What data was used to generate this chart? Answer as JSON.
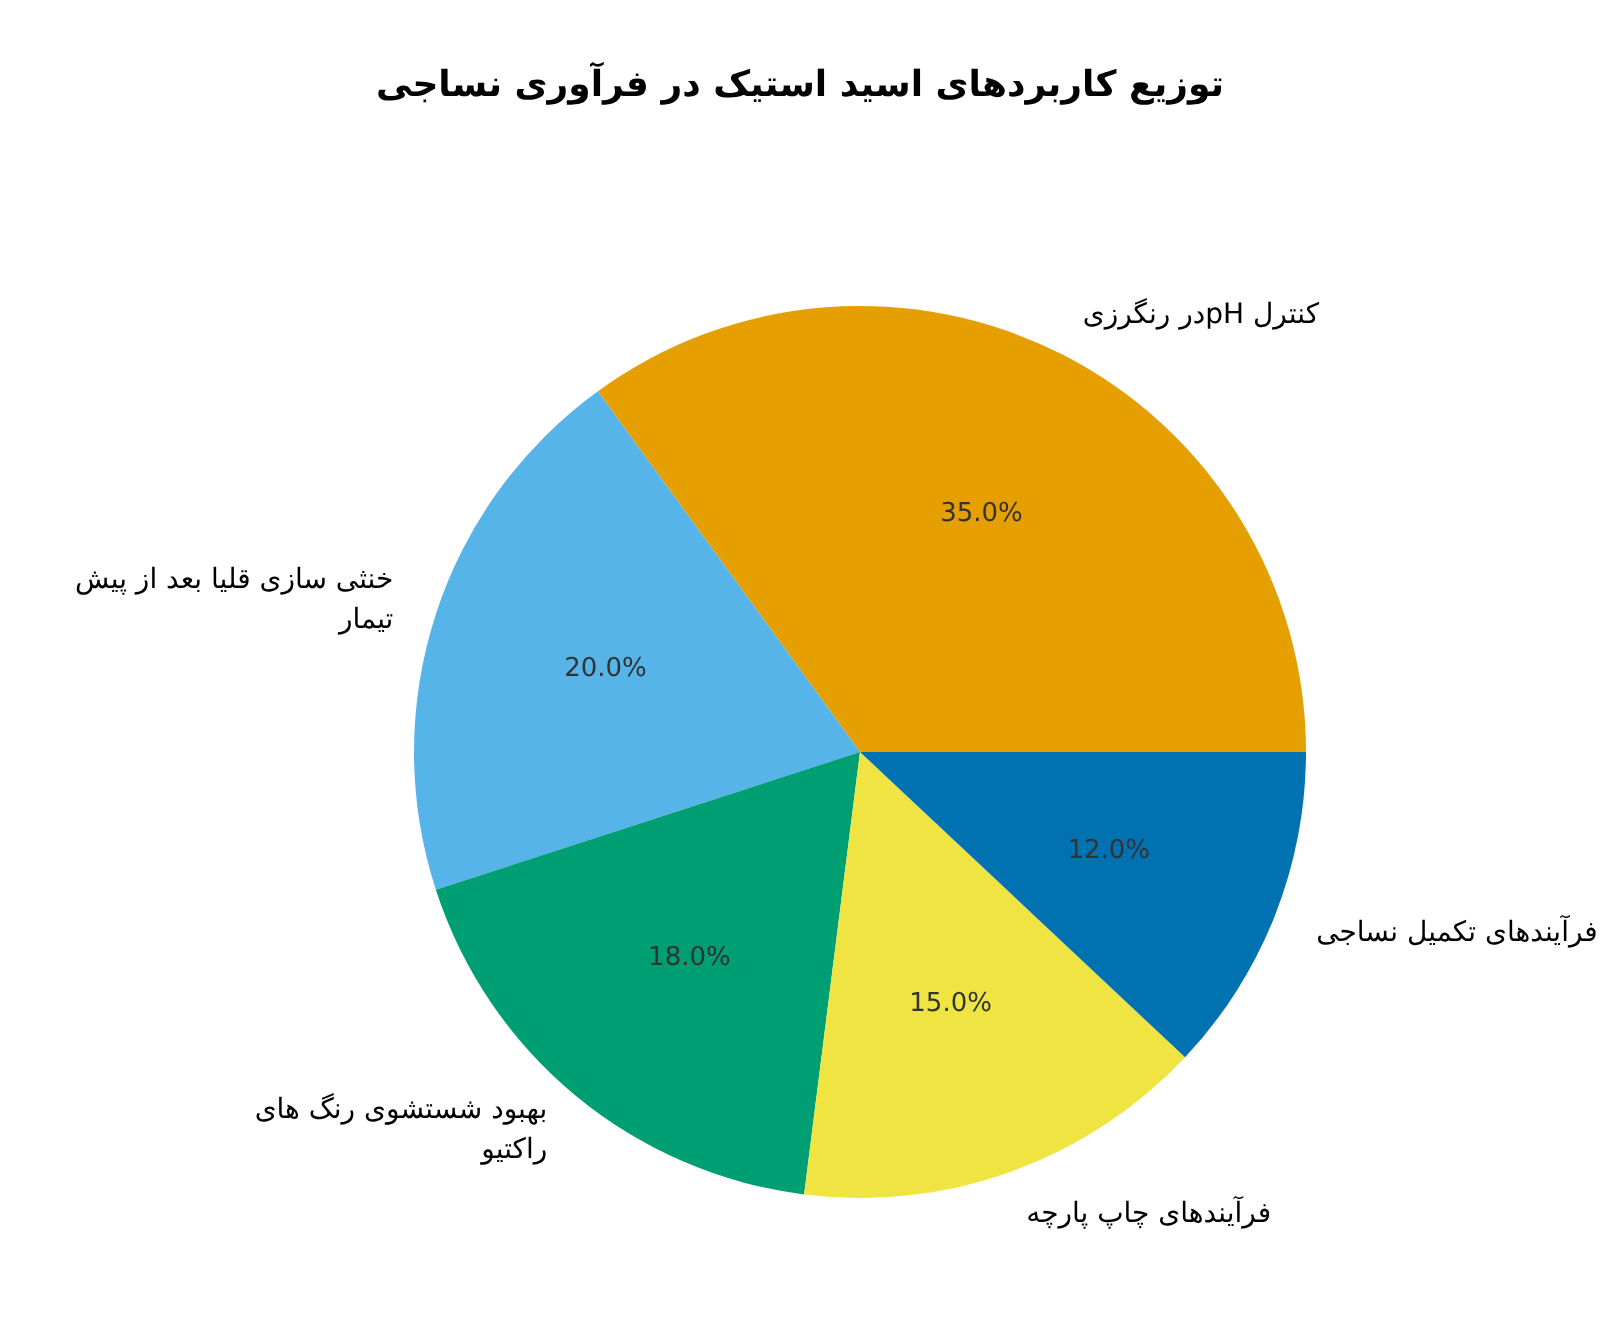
{
  "chart_data": {
    "type": "pie",
    "title": "توزیع کاربردهای اسید استیک در فرآوری نساجی",
    "categories": [
      "کنترل pHدر رنگرزی",
      "خنثی سازی قلیا بعد از پیش تیمار",
      "بهبود شستشوی رنگ های راکتیو",
      "فرآیندهای چاپ پارچه",
      "فرآیندهای تکمیل نساجی"
    ],
    "values": [
      35,
      20,
      18,
      15,
      12
    ],
    "colors": [
      "#e69f00",
      "#56b4e9",
      "#009e73",
      "#f0e442",
      "#0072b2"
    ],
    "value_labels": [
      "35.0%",
      "20.0%",
      "18.0%",
      "15.0%",
      "12.0%"
    ]
  }
}
